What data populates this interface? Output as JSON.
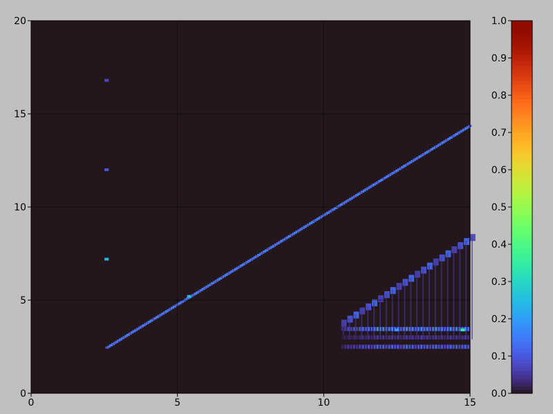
{
  "chart_data": {
    "type": "heatmap",
    "title": "",
    "xlabel": "",
    "ylabel": "",
    "xlim": [
      0,
      15
    ],
    "ylim": [
      0,
      20
    ],
    "xticks": [
      0,
      5,
      10,
      15
    ],
    "yticks": [
      0,
      5,
      10,
      15,
      20
    ],
    "grid": true,
    "background_value": 0.0,
    "colorbar": {
      "colormap": "turbo",
      "range": [
        0.0,
        1.0
      ],
      "ticks": [
        "0.0",
        "0.1",
        "0.2",
        "0.3",
        "0.4",
        "0.5",
        "0.6",
        "0.7",
        "0.8",
        "0.9",
        "1.0"
      ]
    },
    "diagonal_ridge": {
      "x_start": 2.6,
      "y_start": 2.45,
      "x_end": 15.0,
      "y_end": 14.35,
      "intensity": 0.12
    },
    "hotspots": [
      {
        "x": 5.4,
        "y": 5.2,
        "value": 0.25
      },
      {
        "x": 2.58,
        "y": 7.2,
        "value": 0.25
      },
      {
        "x": 2.58,
        "y": 12.0,
        "value": 0.1
      },
      {
        "x": 2.58,
        "y": 16.8,
        "value": 0.08
      },
      {
        "x": 14.75,
        "y": 3.4,
        "value": 0.35
      },
      {
        "x": 12.5,
        "y": 3.4,
        "value": 0.2
      }
    ],
    "harmonic_bands": [
      {
        "y": 3.45,
        "x_start": 10.6,
        "x_end": 15.0,
        "intensity": 0.13
      },
      {
        "y": 2.5,
        "x_start": 10.6,
        "x_end": 15.0,
        "intensity": 0.09
      },
      {
        "y": 3.0,
        "x_start": 10.6,
        "x_end": 15.0,
        "intensity": 0.04
      }
    ],
    "fan_ridge": {
      "x_start": 10.6,
      "y_start": 3.8,
      "x_end": 15.0,
      "y_end": 8.4,
      "intensity": 0.07
    }
  }
}
